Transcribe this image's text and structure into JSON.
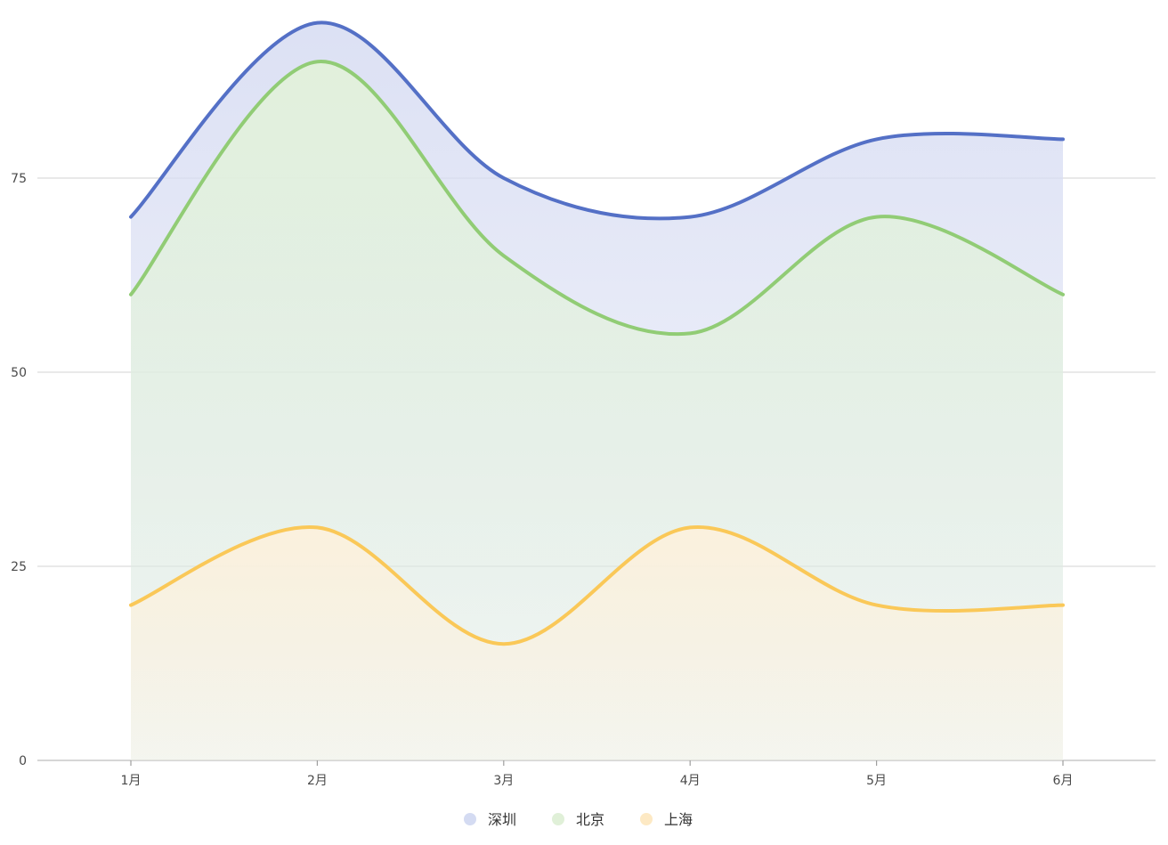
{
  "chart_data": {
    "type": "area",
    "title": "",
    "xlabel": "",
    "ylabel": "",
    "categories": [
      "1月",
      "2月",
      "3月",
      "4月",
      "5月",
      "6月"
    ],
    "y_ticks": [
      "0",
      "25",
      "50",
      "75"
    ],
    "ylim": [
      0,
      95
    ],
    "grid": true,
    "smooth": true,
    "legend_position": "bottom",
    "series": [
      {
        "name": "深圳",
        "values": [
          70,
          95,
          75,
          70,
          80,
          80
        ],
        "color": "#5470c6",
        "fill": "#d9def3",
        "legend_color": "#d4dbf2"
      },
      {
        "name": "北京",
        "values": [
          60,
          90,
          65,
          55,
          70,
          60
        ],
        "color": "#91cc75",
        "fill": "#e2f2da",
        "legend_color": "#e0f0d8"
      },
      {
        "name": "上海",
        "values": [
          20,
          30,
          15,
          30,
          20,
          20
        ],
        "color": "#fac858",
        "fill": "#fdf1dc",
        "legend_color": "#fde9c4"
      }
    ]
  }
}
